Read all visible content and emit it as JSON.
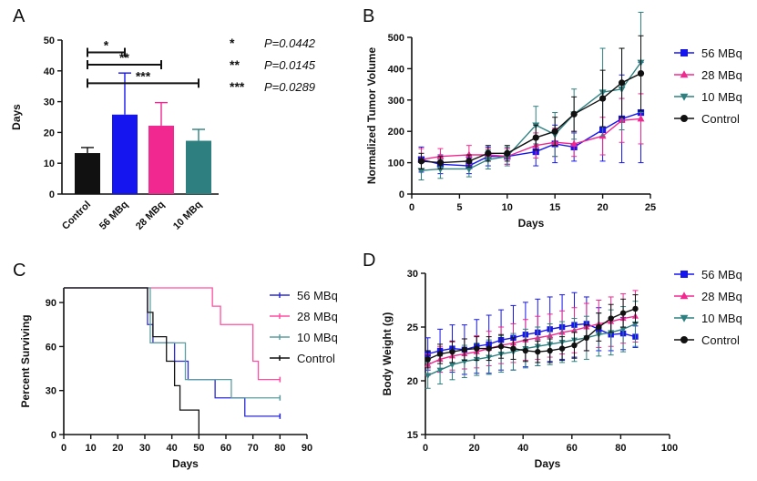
{
  "colors": {
    "s56": "#1515f0",
    "s28": "#f02890",
    "s10": "#2e8080",
    "control": "#111111",
    "curve_56": "#2a2ad6",
    "curve_28": "#ff4fa0",
    "curve_10": "#5f9ea0"
  },
  "chart_data": [
    {
      "panel": "A",
      "type": "bar",
      "ylabel": "Days",
      "ylim": [
        0,
        50
      ],
      "yticks": [
        "0",
        "10",
        "20",
        "30",
        "40",
        "50"
      ],
      "categories": [
        "Control",
        "56 MBq",
        "28 MBq",
        "10 MBq"
      ],
      "values": [
        13.3,
        25.8,
        22.2,
        17.3
      ],
      "errors": [
        1.8,
        13.5,
        7.5,
        3.7
      ],
      "significance": [
        {
          "marker": "*",
          "from": 0,
          "to": 1,
          "y": 46,
          "p_label": "P=0.0442"
        },
        {
          "marker": "**",
          "from": 0,
          "to": 2,
          "y": 42,
          "p_label": "P=0.0145"
        },
        {
          "marker": "***",
          "from": 0,
          "to": 3,
          "y": 36,
          "p_label": "P=0.0289"
        }
      ]
    },
    {
      "panel": "B",
      "type": "line",
      "xlabel": "Days",
      "ylabel": "Normalized Tumor Volume",
      "xlim": [
        0,
        25
      ],
      "ylim": [
        0,
        500
      ],
      "xticks": [
        "0",
        "5",
        "10",
        "15",
        "20",
        "25"
      ],
      "yticks": [
        "0",
        "100",
        "200",
        "300",
        "400",
        "500"
      ],
      "legend_position": "right",
      "series": [
        {
          "name": "56 MBq",
          "marker": "square",
          "x": [
            1,
            3,
            6,
            8,
            10,
            13,
            15,
            17,
            20,
            22,
            24
          ],
          "y": [
            110,
            95,
            90,
            120,
            120,
            135,
            160,
            150,
            205,
            240,
            260
          ],
          "err": [
            40,
            30,
            25,
            30,
            25,
            45,
            60,
            45,
            100,
            140,
            160
          ]
        },
        {
          "name": "28 MBq",
          "marker": "triangle-up",
          "x": [
            1,
            3,
            6,
            8,
            10,
            13,
            15,
            17,
            20,
            22,
            24
          ],
          "y": [
            110,
            120,
            125,
            125,
            120,
            155,
            165,
            160,
            185,
            235,
            240
          ],
          "err": [
            35,
            25,
            30,
            20,
            25,
            40,
            45,
            40,
            60,
            70,
            80
          ]
        },
        {
          "name": "10 MBq",
          "marker": "triangle-down",
          "x": [
            1,
            3,
            6,
            8,
            10,
            13,
            15,
            17,
            20,
            22,
            24
          ],
          "y": [
            75,
            80,
            80,
            110,
            120,
            220,
            190,
            255,
            325,
            335,
            420
          ],
          "err": [
            30,
            30,
            25,
            30,
            30,
            60,
            70,
            80,
            140,
            130,
            160
          ]
        },
        {
          "name": "Control",
          "marker": "circle",
          "x": [
            1,
            3,
            6,
            8,
            10,
            13,
            15,
            17,
            20,
            22,
            24
          ],
          "y": [
            105,
            100,
            105,
            130,
            130,
            180,
            200,
            255,
            305,
            355,
            385
          ],
          "err": [
            25,
            20,
            20,
            25,
            25,
            40,
            45,
            55,
            90,
            110,
            120
          ]
        }
      ]
    },
    {
      "panel": "C",
      "type": "line",
      "xlabel": "Days",
      "ylabel": "Percent Surviving",
      "xlim": [
        0,
        90
      ],
      "ylim": [
        0,
        100
      ],
      "xticks": [
        "0",
        "10",
        "20",
        "30",
        "40",
        "50",
        "60",
        "70",
        "80",
        "90"
      ],
      "yticks": [
        "0",
        "30",
        "60",
        "90"
      ],
      "legend_position": "right",
      "series": [
        {
          "name": "56 MBq",
          "x": [
            0,
            31,
            33,
            41,
            46,
            56,
            67,
            80
          ],
          "y": [
            100,
            75,
            62.5,
            50,
            37.5,
            25,
            12.5,
            12.5
          ]
        },
        {
          "name": "28 MBq",
          "x": [
            0,
            55,
            58,
            70,
            72,
            80
          ],
          "y": [
            100,
            87.5,
            75,
            50,
            37.5,
            37.5
          ]
        },
        {
          "name": "10 MBq",
          "x": [
            0,
            32,
            40,
            45,
            51,
            62,
            80
          ],
          "y": [
            100,
            62.5,
            62.5,
            37.5,
            37.5,
            25,
            25
          ]
        },
        {
          "name": "Control",
          "x": [
            0,
            31,
            33,
            38,
            41,
            43,
            50
          ],
          "y": [
            100,
            83.3,
            66.7,
            50,
            33.3,
            16.7,
            0
          ]
        }
      ]
    },
    {
      "panel": "D",
      "type": "line",
      "xlabel": "Days",
      "ylabel": "Body Weight (g)",
      "xlim": [
        0,
        100
      ],
      "ylim": [
        15,
        30
      ],
      "xticks": [
        "0",
        "20",
        "40",
        "60",
        "80",
        "100"
      ],
      "yticks": [
        "15",
        "20",
        "25",
        "30"
      ],
      "legend_position": "right",
      "series": [
        {
          "name": "56 MBq",
          "marker": "square",
          "x": [
            1,
            6,
            11,
            16,
            21,
            26,
            31,
            36,
            41,
            46,
            51,
            56,
            61,
            66,
            71,
            76,
            81,
            86
          ],
          "y": [
            22.5,
            22.8,
            23.0,
            22.9,
            23.2,
            23.4,
            23.8,
            24.0,
            24.3,
            24.5,
            24.8,
            25.0,
            25.2,
            25.3,
            24.8,
            24.3,
            24.4,
            24.1
          ],
          "err": [
            1.5,
            2.0,
            2.2,
            2.3,
            2.5,
            2.7,
            2.8,
            3.0,
            3.0,
            3.1,
            3.0,
            3.0,
            3.0,
            2.5,
            2.0,
            1.5,
            1.5,
            1.0
          ]
        },
        {
          "name": "28 MBq",
          "marker": "triangle-up",
          "x": [
            1,
            6,
            11,
            16,
            21,
            26,
            31,
            36,
            41,
            46,
            51,
            56,
            61,
            66,
            71,
            76,
            81,
            86
          ],
          "y": [
            21.5,
            22.0,
            22.3,
            22.5,
            22.7,
            23.0,
            23.3,
            23.5,
            23.8,
            24.0,
            24.2,
            24.5,
            24.7,
            25.0,
            25.3,
            25.5,
            25.8,
            26.0
          ],
          "err": [
            1.0,
            1.2,
            1.3,
            1.4,
            1.5,
            1.6,
            1.7,
            1.8,
            1.9,
            2.0,
            2.0,
            2.0,
            2.1,
            2.2,
            2.2,
            2.3,
            2.3,
            2.4
          ]
        },
        {
          "name": "10 MBq",
          "marker": "triangle-down",
          "x": [
            1,
            6,
            11,
            16,
            21,
            26,
            31,
            36,
            41,
            46,
            51,
            56,
            61,
            66,
            71,
            76,
            81,
            86
          ],
          "y": [
            20.5,
            21.0,
            21.5,
            21.8,
            22.0,
            22.2,
            22.5,
            22.7,
            23.0,
            23.2,
            23.4,
            23.6,
            23.8,
            24.0,
            24.3,
            24.5,
            24.8,
            25.3
          ],
          "err": [
            1.2,
            1.3,
            1.4,
            1.5,
            1.5,
            1.6,
            1.7,
            1.7,
            1.8,
            1.8,
            1.9,
            1.9,
            2.0,
            2.0,
            2.0,
            2.1,
            2.1,
            2.1
          ]
        },
        {
          "name": "Control",
          "marker": "circle",
          "x": [
            1,
            6,
            11,
            16,
            21,
            26,
            31,
            36,
            41,
            46,
            51,
            56,
            61,
            66,
            71,
            76,
            81,
            86
          ],
          "y": [
            22.0,
            22.5,
            22.7,
            22.9,
            23.0,
            23.0,
            23.2,
            23.0,
            22.8,
            22.7,
            22.8,
            23.0,
            23.3,
            24.0,
            25.0,
            25.8,
            26.3,
            26.7
          ],
          "err": [
            0.8,
            0.9,
            1.0,
            1.0,
            1.1,
            1.1,
            1.1,
            1.0,
            1.0,
            1.0,
            1.1,
            1.1,
            1.2,
            1.2,
            1.3,
            1.3,
            1.3,
            1.3
          ]
        }
      ]
    }
  ]
}
